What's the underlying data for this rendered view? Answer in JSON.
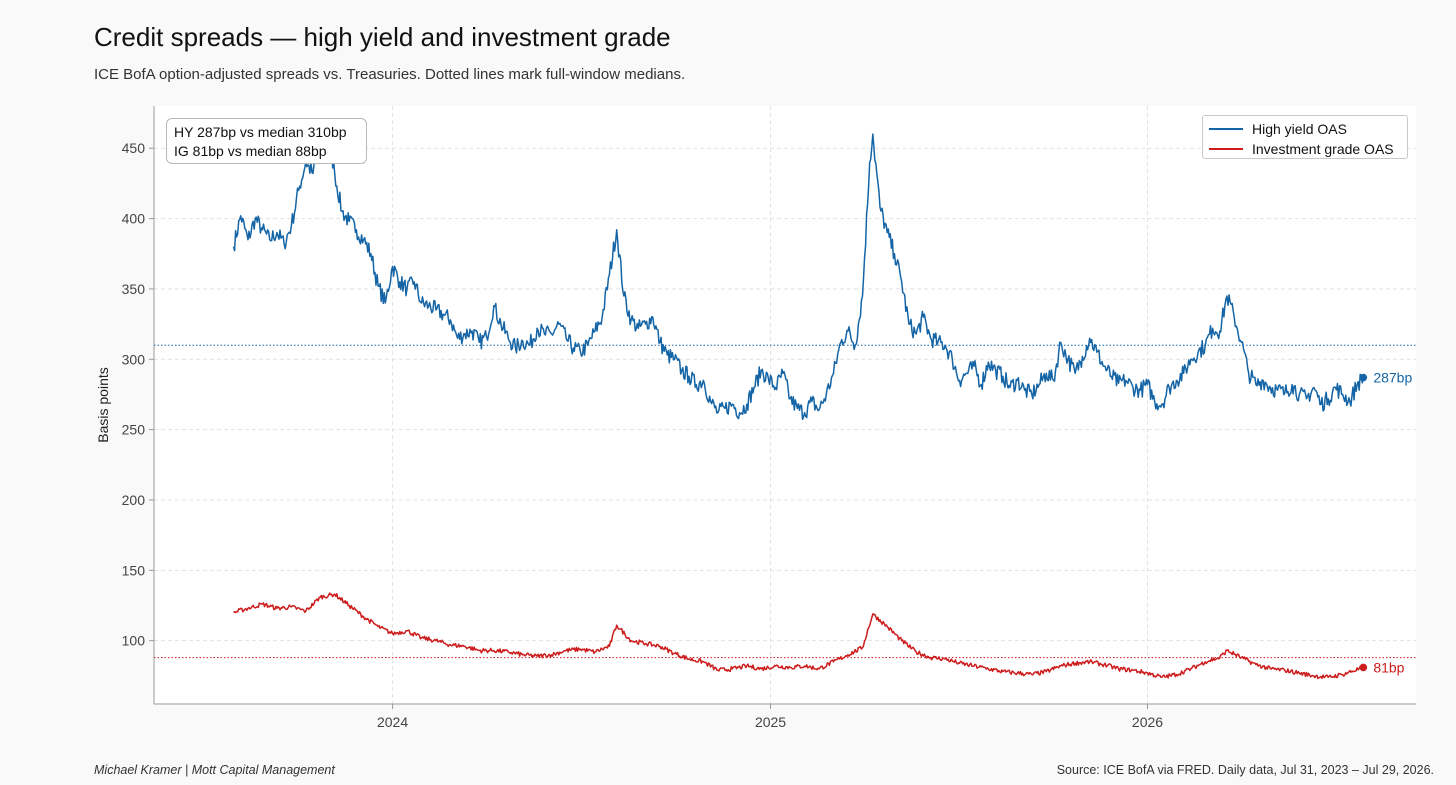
{
  "header": {
    "title": "Credit spreads — high yield and investment grade",
    "subtitle": "ICE BofA option-adjusted spreads vs. Treasuries. Dotted lines mark full-window medians."
  },
  "annotation": {
    "line1": "HY 287bp vs median 310bp",
    "line2": "IG 81bp vs median 88bp"
  },
  "footer": {
    "left": "Michael Kramer  |  Mott Capital Management",
    "right": "Source: ICE BofA via FRED. Daily data, Jul 31, 2023 – Jul 29, 2026."
  },
  "colors": {
    "hy": "#1565a6",
    "ig": "#cc1c1c",
    "grid": "#e2e2e2",
    "axis": "#9a9a9a"
  },
  "chart_data": {
    "type": "line",
    "title": "Credit spreads — high yield and investment grade",
    "xlabel": "",
    "ylabel": "Basis points",
    "ylim": [
      55,
      480
    ],
    "yticks": [
      100,
      150,
      200,
      250,
      300,
      350,
      400,
      450
    ],
    "xticks": [
      {
        "label": "2024",
        "date": "2024-01-01"
      },
      {
        "label": "2025",
        "date": "2025-01-01"
      },
      {
        "label": "2026",
        "date": "2026-01-01"
      }
    ],
    "xrange": [
      "2023-05-15",
      "2026-09-18"
    ],
    "grid": true,
    "legend_position": "top-right",
    "series": [
      {
        "name": "High yield OAS",
        "color": "#1565a6",
        "median": 310,
        "end_label": "287bp",
        "points": [
          [
            "2023-07-31",
            380
          ],
          [
            "2023-08-07",
            402
          ],
          [
            "2023-08-14",
            385
          ],
          [
            "2023-08-21",
            400
          ],
          [
            "2023-08-28",
            392
          ],
          [
            "2023-09-04",
            385
          ],
          [
            "2023-09-11",
            390
          ],
          [
            "2023-09-18",
            382
          ],
          [
            "2023-09-25",
            395
          ],
          [
            "2023-10-02",
            420
          ],
          [
            "2023-10-09",
            440
          ],
          [
            "2023-10-16",
            432
          ],
          [
            "2023-10-23",
            452
          ],
          [
            "2023-10-30",
            462
          ],
          [
            "2023-11-06",
            432
          ],
          [
            "2023-11-13",
            405
          ],
          [
            "2023-11-20",
            398
          ],
          [
            "2023-11-27",
            392
          ],
          [
            "2023-12-04",
            385
          ],
          [
            "2023-12-11",
            375
          ],
          [
            "2023-12-18",
            352
          ],
          [
            "2023-12-25",
            340
          ],
          [
            "2024-01-01",
            366
          ],
          [
            "2024-01-08",
            355
          ],
          [
            "2024-01-15",
            350
          ],
          [
            "2024-01-22",
            355
          ],
          [
            "2024-01-29",
            340
          ],
          [
            "2024-02-05",
            338
          ],
          [
            "2024-02-12",
            335
          ],
          [
            "2024-02-19",
            332
          ],
          [
            "2024-02-26",
            328
          ],
          [
            "2024-03-04",
            315
          ],
          [
            "2024-03-11",
            318
          ],
          [
            "2024-03-18",
            320
          ],
          [
            "2024-03-25",
            312
          ],
          [
            "2024-04-01",
            316
          ],
          [
            "2024-04-08",
            338
          ],
          [
            "2024-04-15",
            325
          ],
          [
            "2024-04-22",
            315
          ],
          [
            "2024-04-29",
            308
          ],
          [
            "2024-05-06",
            313
          ],
          [
            "2024-05-13",
            310
          ],
          [
            "2024-05-20",
            322
          ],
          [
            "2024-05-27",
            318
          ],
          [
            "2024-06-03",
            318
          ],
          [
            "2024-06-10",
            325
          ],
          [
            "2024-06-17",
            315
          ],
          [
            "2024-06-24",
            308
          ],
          [
            "2024-07-01",
            305
          ],
          [
            "2024-07-08",
            310
          ],
          [
            "2024-07-15",
            320
          ],
          [
            "2024-07-22",
            330
          ],
          [
            "2024-07-29",
            360
          ],
          [
            "2024-08-05",
            392
          ],
          [
            "2024-08-12",
            345
          ],
          [
            "2024-08-19",
            328
          ],
          [
            "2024-08-26",
            322
          ],
          [
            "2024-09-02",
            325
          ],
          [
            "2024-09-09",
            330
          ],
          [
            "2024-09-16",
            312
          ],
          [
            "2024-09-23",
            303
          ],
          [
            "2024-09-30",
            300
          ],
          [
            "2024-10-07",
            292
          ],
          [
            "2024-10-14",
            288
          ],
          [
            "2024-10-21",
            282
          ],
          [
            "2024-10-28",
            285
          ],
          [
            "2024-11-04",
            270
          ],
          [
            "2024-11-11",
            262
          ],
          [
            "2024-11-18",
            265
          ],
          [
            "2024-11-25",
            268
          ],
          [
            "2024-12-02",
            262
          ],
          [
            "2024-12-09",
            268
          ],
          [
            "2024-12-16",
            280
          ],
          [
            "2024-12-23",
            292
          ],
          [
            "2024-12-30",
            286
          ],
          [
            "2025-01-06",
            280
          ],
          [
            "2025-01-13",
            290
          ],
          [
            "2025-01-20",
            272
          ],
          [
            "2025-01-27",
            265
          ],
          [
            "2025-02-03",
            262
          ],
          [
            "2025-02-10",
            270
          ],
          [
            "2025-02-17",
            264
          ],
          [
            "2025-02-24",
            275
          ],
          [
            "2025-03-03",
            290
          ],
          [
            "2025-03-10",
            312
          ],
          [
            "2025-03-17",
            320
          ],
          [
            "2025-03-24",
            310
          ],
          [
            "2025-03-31",
            345
          ],
          [
            "2025-04-07",
            440
          ],
          [
            "2025-04-10",
            460
          ],
          [
            "2025-04-17",
            408
          ],
          [
            "2025-04-24",
            390
          ],
          [
            "2025-05-01",
            375
          ],
          [
            "2025-05-08",
            355
          ],
          [
            "2025-05-15",
            325
          ],
          [
            "2025-05-22",
            318
          ],
          [
            "2025-05-29",
            330
          ],
          [
            "2025-06-05",
            315
          ],
          [
            "2025-06-12",
            312
          ],
          [
            "2025-06-19",
            310
          ],
          [
            "2025-06-26",
            300
          ],
          [
            "2025-07-03",
            285
          ],
          [
            "2025-07-10",
            290
          ],
          [
            "2025-07-17",
            295
          ],
          [
            "2025-07-24",
            282
          ],
          [
            "2025-07-31",
            298
          ],
          [
            "2025-08-07",
            292
          ],
          [
            "2025-08-14",
            288
          ],
          [
            "2025-08-21",
            280
          ],
          [
            "2025-08-28",
            285
          ],
          [
            "2025-09-04",
            278
          ],
          [
            "2025-09-11",
            275
          ],
          [
            "2025-09-18",
            282
          ],
          [
            "2025-09-25",
            290
          ],
          [
            "2025-10-02",
            285
          ],
          [
            "2025-10-09",
            312
          ],
          [
            "2025-10-16",
            300
          ],
          [
            "2025-10-23",
            290
          ],
          [
            "2025-10-30",
            302
          ],
          [
            "2025-11-06",
            315
          ],
          [
            "2025-11-13",
            305
          ],
          [
            "2025-11-20",
            295
          ],
          [
            "2025-11-27",
            288
          ],
          [
            "2025-12-04",
            283
          ],
          [
            "2025-12-11",
            285
          ],
          [
            "2025-12-18",
            280
          ],
          [
            "2025-12-25",
            278
          ],
          [
            "2026-01-01",
            282
          ],
          [
            "2026-01-08",
            270
          ],
          [
            "2026-01-15",
            268
          ],
          [
            "2026-01-22",
            280
          ],
          [
            "2026-01-29",
            285
          ],
          [
            "2026-02-05",
            290
          ],
          [
            "2026-02-12",
            300
          ],
          [
            "2026-02-19",
            305
          ],
          [
            "2026-02-26",
            310
          ],
          [
            "2026-03-05",
            322
          ],
          [
            "2026-03-12",
            320
          ],
          [
            "2026-03-19",
            345
          ],
          [
            "2026-03-26",
            330
          ],
          [
            "2026-04-02",
            312
          ],
          [
            "2026-04-09",
            290
          ],
          [
            "2026-04-16",
            282
          ],
          [
            "2026-04-23",
            285
          ],
          [
            "2026-04-30",
            280
          ],
          [
            "2026-05-07",
            278
          ],
          [
            "2026-05-14",
            276
          ],
          [
            "2026-05-21",
            282
          ],
          [
            "2026-05-28",
            275
          ],
          [
            "2026-06-04",
            272
          ],
          [
            "2026-06-11",
            280
          ],
          [
            "2026-06-18",
            268
          ],
          [
            "2026-06-25",
            272
          ],
          [
            "2026-07-02",
            280
          ],
          [
            "2026-07-09",
            275
          ],
          [
            "2026-07-16",
            270
          ],
          [
            "2026-07-23",
            282
          ],
          [
            "2026-07-29",
            287
          ]
        ]
      },
      {
        "name": "Investment grade OAS",
        "color": "#cc1c1c",
        "median": 88,
        "end_label": "81bp",
        "points": [
          [
            "2023-07-31",
            120
          ],
          [
            "2023-08-14",
            123
          ],
          [
            "2023-08-28",
            126
          ],
          [
            "2023-09-11",
            123
          ],
          [
            "2023-09-25",
            124
          ],
          [
            "2023-10-09",
            121
          ],
          [
            "2023-10-23",
            131
          ],
          [
            "2023-11-06",
            133
          ],
          [
            "2023-11-20",
            125
          ],
          [
            "2023-12-04",
            117
          ],
          [
            "2023-12-18",
            110
          ],
          [
            "2024-01-01",
            105
          ],
          [
            "2024-01-15",
            107
          ],
          [
            "2024-01-29",
            102
          ],
          [
            "2024-02-12",
            100
          ],
          [
            "2024-02-26",
            97
          ],
          [
            "2024-03-11",
            96
          ],
          [
            "2024-03-25",
            93
          ],
          [
            "2024-04-08",
            93
          ],
          [
            "2024-04-22",
            92
          ],
          [
            "2024-05-06",
            90
          ],
          [
            "2024-05-20",
            89
          ],
          [
            "2024-06-03",
            90
          ],
          [
            "2024-06-17",
            93
          ],
          [
            "2024-07-01",
            94
          ],
          [
            "2024-07-15",
            92
          ],
          [
            "2024-07-29",
            96
          ],
          [
            "2024-08-05",
            111
          ],
          [
            "2024-08-19",
            100
          ],
          [
            "2024-09-02",
            98
          ],
          [
            "2024-09-16",
            96
          ],
          [
            "2024-09-30",
            91
          ],
          [
            "2024-10-14",
            87
          ],
          [
            "2024-10-28",
            85
          ],
          [
            "2024-11-11",
            79
          ],
          [
            "2024-11-25",
            80
          ],
          [
            "2024-12-09",
            82
          ],
          [
            "2024-12-23",
            80
          ],
          [
            "2025-01-06",
            82
          ],
          [
            "2025-01-20",
            81
          ],
          [
            "2025-02-03",
            82
          ],
          [
            "2025-02-17",
            80
          ],
          [
            "2025-03-03",
            85
          ],
          [
            "2025-03-17",
            90
          ],
          [
            "2025-03-31",
            95
          ],
          [
            "2025-04-10",
            119
          ],
          [
            "2025-04-24",
            110
          ],
          [
            "2025-05-08",
            100
          ],
          [
            "2025-05-22",
            92
          ],
          [
            "2025-06-05",
            88
          ],
          [
            "2025-06-19",
            87
          ],
          [
            "2025-07-03",
            84
          ],
          [
            "2025-07-17",
            82
          ],
          [
            "2025-07-31",
            80
          ],
          [
            "2025-08-14",
            78
          ],
          [
            "2025-08-28",
            77
          ],
          [
            "2025-09-11",
            76
          ],
          [
            "2025-09-25",
            78
          ],
          [
            "2025-10-09",
            82
          ],
          [
            "2025-10-23",
            84
          ],
          [
            "2025-11-06",
            85
          ],
          [
            "2025-11-20",
            83
          ],
          [
            "2025-12-04",
            80
          ],
          [
            "2025-12-18",
            79
          ],
          [
            "2026-01-01",
            77
          ],
          [
            "2026-01-15",
            74
          ],
          [
            "2026-01-29",
            76
          ],
          [
            "2026-02-12",
            80
          ],
          [
            "2026-02-26",
            85
          ],
          [
            "2026-03-12",
            88
          ],
          [
            "2026-03-19",
            93
          ],
          [
            "2026-04-02",
            88
          ],
          [
            "2026-04-16",
            83
          ],
          [
            "2026-04-30",
            80
          ],
          [
            "2026-05-14",
            79
          ],
          [
            "2026-05-28",
            77
          ],
          [
            "2026-06-11",
            75
          ],
          [
            "2026-06-25",
            74
          ],
          [
            "2026-07-09",
            76
          ],
          [
            "2026-07-29",
            81
          ]
        ]
      }
    ]
  }
}
